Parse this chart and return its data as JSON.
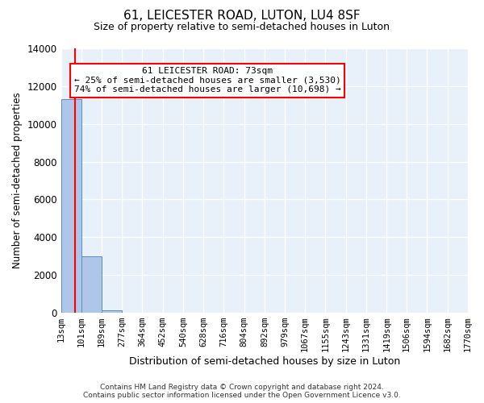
{
  "title": "61, LEICESTER ROAD, LUTON, LU4 8SF",
  "subtitle": "Size of property relative to semi-detached houses in Luton",
  "xlabel": "Distribution of semi-detached houses by size in Luton",
  "ylabel": "Number of semi-detached properties",
  "annotation_line1": "61 LEICESTER ROAD: 73sqm",
  "annotation_line2": "← 25% of semi-detached houses are smaller (3,530)",
  "annotation_line3": "74% of semi-detached houses are larger (10,698) →",
  "bin_edges": [
    13,
    101,
    189,
    277,
    364,
    452,
    540,
    628,
    716,
    804,
    892,
    979,
    1067,
    1155,
    1243,
    1331,
    1419,
    1506,
    1594,
    1682,
    1770
  ],
  "bin_labels": [
    "13sqm",
    "101sqm",
    "189sqm",
    "277sqm",
    "364sqm",
    "452sqm",
    "540sqm",
    "628sqm",
    "716sqm",
    "804sqm",
    "892sqm",
    "979sqm",
    "1067sqm",
    "1155sqm",
    "1243sqm",
    "1331sqm",
    "1419sqm",
    "1506sqm",
    "1594sqm",
    "1682sqm",
    "1770sqm"
  ],
  "bar_heights": [
    11300,
    3000,
    100,
    0,
    0,
    0,
    0,
    0,
    0,
    0,
    0,
    0,
    0,
    0,
    0,
    0,
    0,
    0,
    0,
    0
  ],
  "bar_color": "#aec6e8",
  "bar_edge_color": "#5a8fc0",
  "red_line_x": 73,
  "ylim": [
    0,
    14000
  ],
  "background_color": "#e8f0fa",
  "footer_line1": "Contains HM Land Registry data © Crown copyright and database right 2024.",
  "footer_line2": "Contains public sector information licensed under the Open Government Licence v3.0."
}
